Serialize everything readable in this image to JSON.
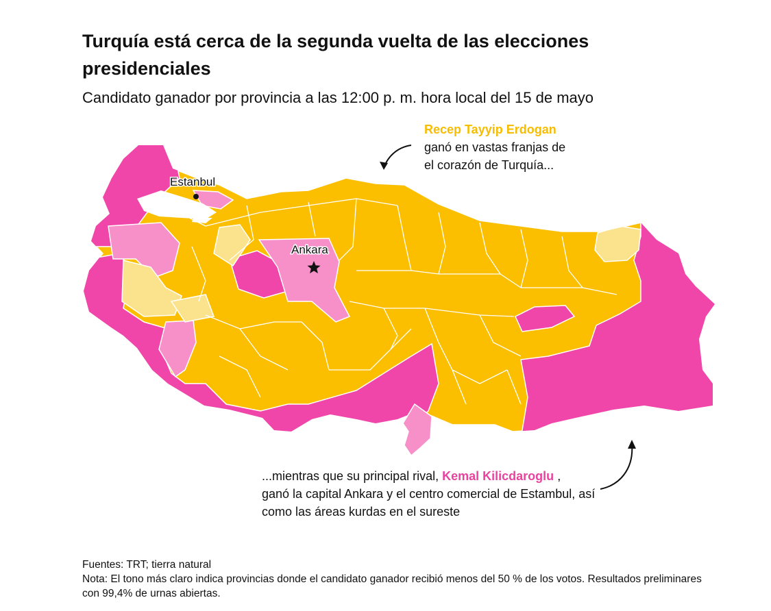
{
  "title": "Turquía está cerca de la segunda vuelta de las elecciones presidenciales",
  "subtitle": "Candidato ganador por provincia a las 12:00 p. m. hora local del 15 de mayo",
  "annotations": {
    "erdogan_name": "Recep Tayyip Erdogan",
    "erdogan_text_1": "ganó en vastas franjas de",
    "erdogan_text_2": "el corazón de Turquía...",
    "kilicdaroglu_intro": "...mientras que su principal rival,",
    "kilicdaroglu_name": "Kemal Kilicdaroglu",
    "kilicdaroglu_comma": ",",
    "kilicdaroglu_text": "ganó la capital Ankara y el centro comercial de Estambul, así como las áreas kurdas en el sureste"
  },
  "cities": {
    "istanbul": "Estanbul",
    "ankara": "Ankara"
  },
  "colors": {
    "erdogan_majority": "#fbbf00",
    "erdogan_plurality": "#fbe28c",
    "kilicdaroglu_majority": "#f046a9",
    "kilicdaroglu_plurality": "#f78fc9"
  },
  "footer": {
    "sources": "Fuentes: TRT; tierra natural",
    "note": "Nota: El tono más claro indica provincias donde el candidato ganador recibió menos del 50 % de los votos. Resultados preliminares con 99,4% de urnas abiertas."
  }
}
